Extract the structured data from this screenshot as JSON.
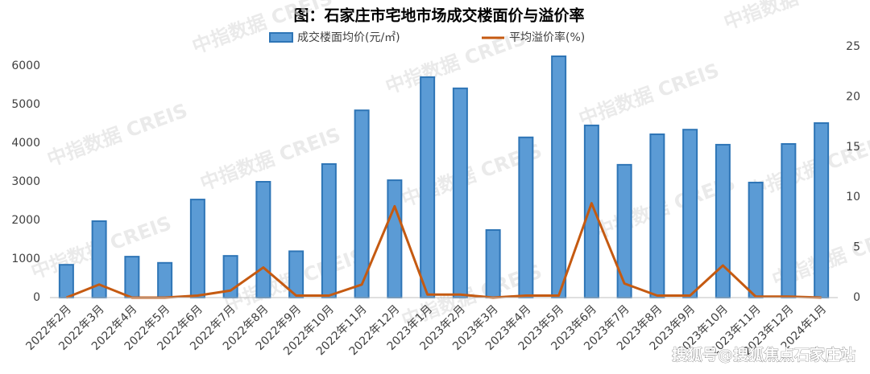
{
  "chart_data": {
    "type": "bar",
    "title": "图：石家庄市宅地市场成交楼面价与溢价率",
    "watermark": "中指数据 CREIS",
    "source_watermark": "搜狐号@搜狐焦点石家庄站",
    "categories": [
      "2022年2月",
      "2022年3月",
      "2022年4月",
      "2022年5月",
      "2022年6月",
      "2022年7月",
      "2022年8月",
      "2022年9月",
      "2022年10月",
      "2022年11月",
      "2022年12月",
      "2023年1月",
      "2023年2月",
      "2023年3月",
      "2023年4月",
      "2023年5月",
      "2023年6月",
      "2023年7月",
      "2023年8月",
      "2023年9月",
      "2023年10月",
      "2023年11月",
      "2023年12月",
      "2024年1月"
    ],
    "series": [
      {
        "name": "成交楼面均价(元/㎡)",
        "type": "bar",
        "color": "#5b9bd5",
        "stroke": "#2e75b6",
        "values": [
          850,
          1980,
          1060,
          900,
          2540,
          1080,
          3000,
          1200,
          3460,
          4850,
          3040,
          5710,
          5420,
          1750,
          4150,
          6250,
          4460,
          3440,
          4230,
          4350,
          3960,
          2980,
          3980,
          4520
        ]
      },
      {
        "name": "平均溢价率(%)",
        "type": "line",
        "axis": "y2",
        "color": "#c55a11",
        "values": [
          0,
          1.3,
          0,
          0,
          0.2,
          0.7,
          3.0,
          0.2,
          0.2,
          1.3,
          9.1,
          0.3,
          0.3,
          0,
          0.2,
          0.2,
          9.4,
          1.4,
          0.2,
          0.2,
          3.2,
          0.1,
          0.1,
          0
        ]
      }
    ],
    "ylim": [
      0,
      6500
    ],
    "yticks": [
      0,
      1000,
      2000,
      3000,
      4000,
      5000,
      6000
    ],
    "y2lim": [
      0,
      25
    ],
    "y2ticks": [
      0,
      5,
      10,
      15,
      20,
      25
    ],
    "grid": false
  }
}
